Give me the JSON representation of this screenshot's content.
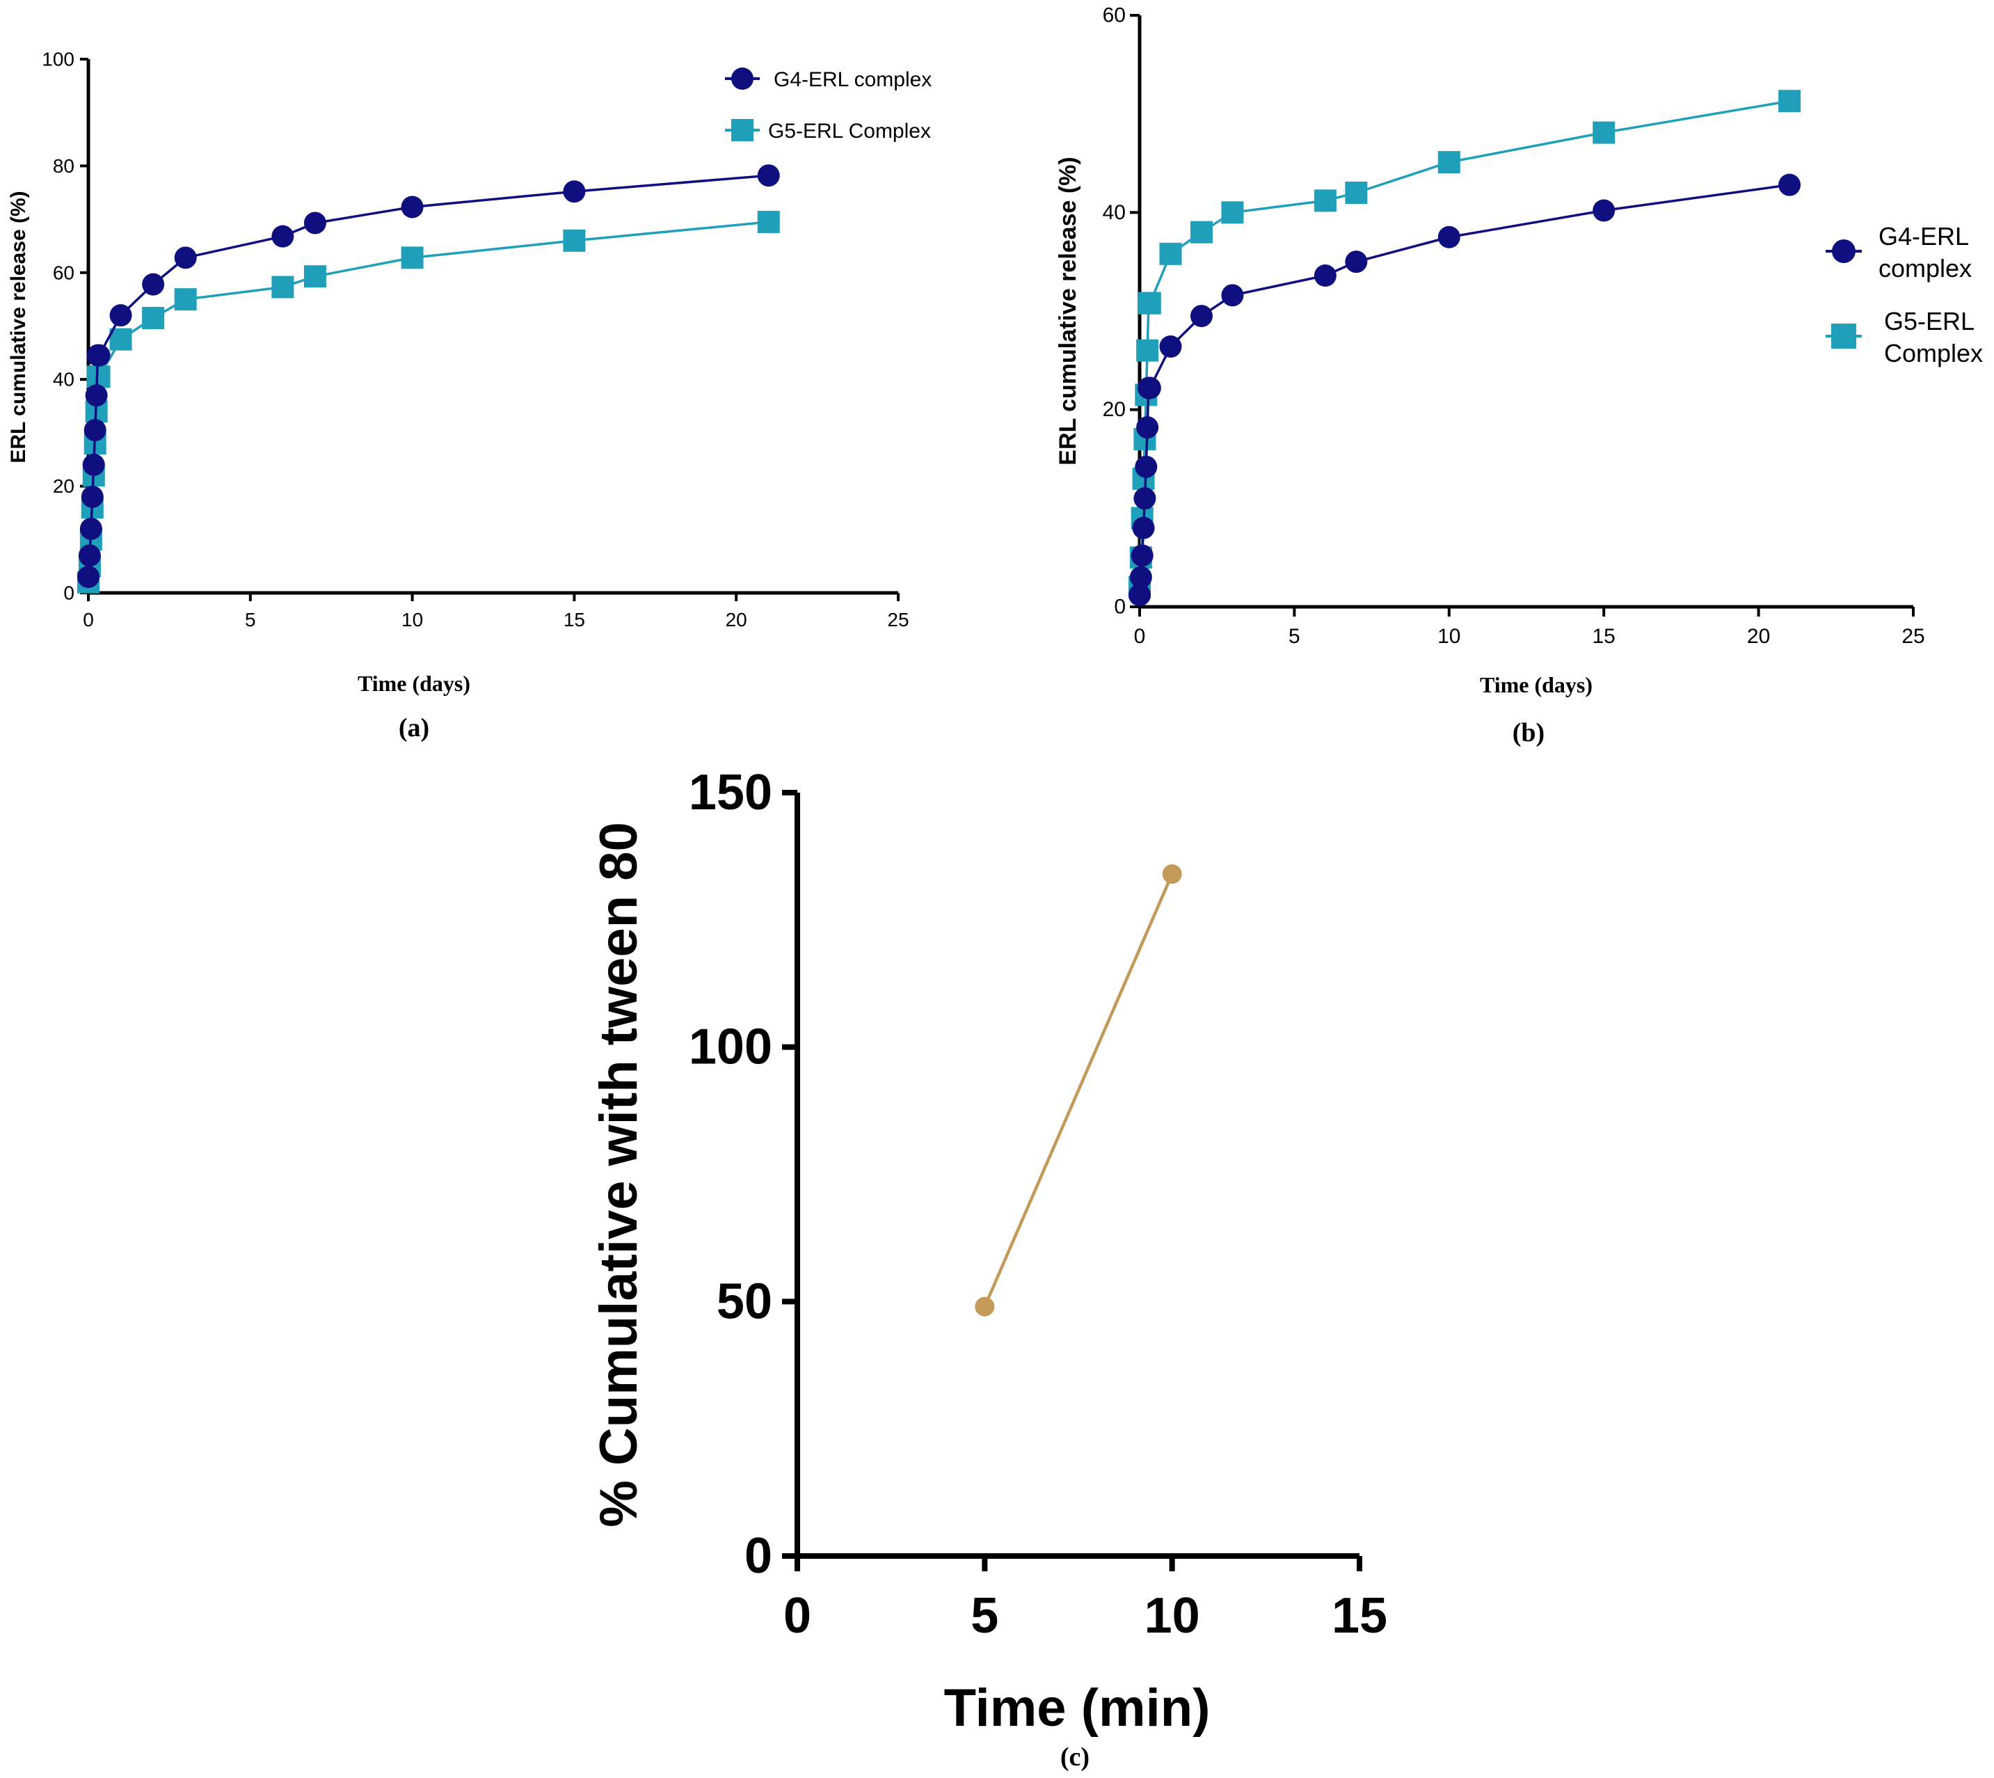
{
  "chart_data": [
    {
      "id": "a",
      "type": "line",
      "caption": "(a)",
      "xlabel": "Time (days)",
      "ylabel": "ERL cumulative release (%)",
      "xlim": [
        0,
        25
      ],
      "ylim": [
        0,
        100
      ],
      "xticks": [
        0,
        5,
        10,
        15,
        20,
        25
      ],
      "yticks": [
        0,
        20,
        40,
        60,
        80,
        100
      ],
      "legend": "top-right",
      "series": [
        {
          "name": "G4-ERL complex",
          "marker": "circle",
          "color": "#0f0f80",
          "x": [
            0,
            0.0417,
            0.0833,
            0.125,
            0.1667,
            0.2083,
            0.25,
            0.2917,
            0.3333,
            1,
            2,
            3,
            6,
            7,
            10,
            15,
            21
          ],
          "y": [
            3,
            7,
            12,
            18,
            24,
            30.5,
            37,
            44.5,
            44.5,
            52,
            57.8,
            62.8,
            66.8,
            69.3,
            72.3,
            75.2,
            78.2
          ]
        },
        {
          "name": "G5-ERL Complex",
          "marker": "square",
          "color": "#1f9fba",
          "x": [
            0,
            0.0417,
            0.0833,
            0.125,
            0.1667,
            0.2083,
            0.25,
            0.2917,
            0.3333,
            1,
            2,
            3,
            6,
            7,
            10,
            15,
            21
          ],
          "y": [
            2,
            5,
            10,
            16,
            22,
            28,
            34,
            40.5,
            40.5,
            47.5,
            51.5,
            55,
            57.3,
            59.3,
            62.8,
            66,
            69.5
          ]
        }
      ]
    },
    {
      "id": "b",
      "type": "line",
      "caption": "(b)",
      "xlabel": "Time (days)",
      "ylabel": "ERL cumulative release (%)",
      "xlim": [
        0,
        25
      ],
      "ylim": [
        0,
        60
      ],
      "xticks": [
        0,
        5,
        10,
        15,
        20,
        25
      ],
      "yticks": [
        0,
        20,
        40,
        60
      ],
      "legend": "right",
      "series": [
        {
          "name": "G4-ERL complex",
          "name_lines": [
            "G4-ERL",
            "complex"
          ],
          "marker": "circle",
          "color": "#0f0f80",
          "x": [
            0,
            0.0417,
            0.0833,
            0.125,
            0.1667,
            0.2083,
            0.25,
            0.2917,
            0.3333,
            1,
            2,
            3,
            6,
            7,
            10,
            15,
            21
          ],
          "y": [
            1.2,
            3,
            5.2,
            8,
            11,
            14.2,
            18.2,
            22.2,
            22.2,
            26.4,
            29.5,
            31.6,
            33.6,
            35,
            37.5,
            40.2,
            42.8
          ]
        },
        {
          "name": "G5-ERL Complex",
          "name_lines": [
            "G5-ERL",
            "Complex"
          ],
          "marker": "square",
          "color": "#1f9fba",
          "x": [
            0,
            0.0417,
            0.0833,
            0.125,
            0.1667,
            0.2083,
            0.25,
            0.2917,
            0.3333,
            1,
            2,
            3,
            6,
            7,
            10,
            15,
            21
          ],
          "y": [
            2,
            5,
            9,
            13,
            17,
            21.5,
            26,
            30.8,
            30.8,
            35.8,
            38,
            40,
            41.2,
            42,
            45.1,
            48.1,
            51.3
          ]
        }
      ]
    },
    {
      "id": "c",
      "type": "line",
      "caption": "(c)",
      "xlabel": "Time (min)",
      "ylabel": "% Cumulative with tween 80",
      "xlim": [
        0,
        15
      ],
      "ylim": [
        0,
        150
      ],
      "xticks": [
        0,
        5,
        10,
        15
      ],
      "yticks": [
        0,
        50,
        100,
        150
      ],
      "legend": "none",
      "series": [
        {
          "name": "",
          "marker": "circle",
          "color": "#c49a5a",
          "x": [
            5,
            10
          ],
          "y": [
            49,
            134
          ]
        }
      ]
    }
  ]
}
